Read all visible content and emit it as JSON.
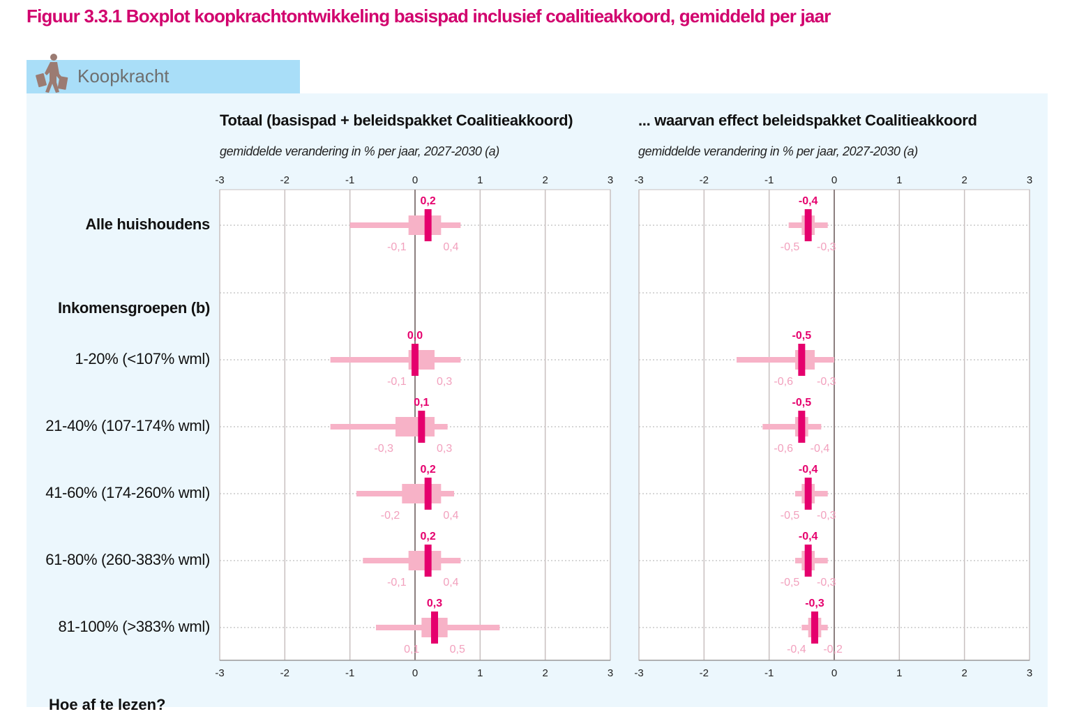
{
  "figure": {
    "title": "Figuur 3.3.1  Boxplot koopkrachtontwikkeling basispad inclusief coalitieakkoord, gemiddeld per jaar",
    "tab_label": "Koopkracht",
    "tab_icon": "person-with-shopping-bags-icon",
    "footer_heading": "Hoe af te lezen?"
  },
  "colors": {
    "title": "#d1006d",
    "median": "#e5006d",
    "box": "#f7b2c7",
    "label_light": "#f2a0bd",
    "tab_bg": "#a9def8",
    "panel_bg": "#ecf7fd",
    "grid": "#c8c0c0",
    "zero_line": "#8c7f7f"
  },
  "row_labels": [
    {
      "key": "alle",
      "label": "Alle huishoudens",
      "bold": true
    },
    {
      "key": "section",
      "label": "Inkomensgroepen (b)",
      "bold": true
    },
    {
      "key": "q1",
      "label": "1-20% (<107% wml)",
      "bold": false
    },
    {
      "key": "q2",
      "label": "21-40% (107-174% wml)",
      "bold": false
    },
    {
      "key": "q3",
      "label": "41-60% (174-260% wml)",
      "bold": false
    },
    {
      "key": "q4",
      "label": "61-80% (260-383% wml)",
      "bold": false
    },
    {
      "key": "q5",
      "label": "81-100% (>383% wml)",
      "bold": false
    }
  ],
  "chart_data": [
    {
      "type": "boxplot",
      "title": "Totaal (basispad + beleidspakket Coalitieakkoord)",
      "subtitle": "gemiddelde verandering in % per jaar, 2027-2030 (a)",
      "xlim": [
        -3,
        3
      ],
      "xticks": [
        -3,
        -2,
        -1,
        0,
        1,
        2,
        3
      ],
      "xtick_labels": [
        "-3",
        "-2",
        "-1",
        "0",
        "1",
        "2",
        "3"
      ],
      "grid": true,
      "rows": [
        {
          "key": "alle",
          "whisker_low": -1.0,
          "q1": -0.1,
          "median": 0.2,
          "q3": 0.4,
          "whisker_high": 0.7,
          "q1_label": "-0,1",
          "median_label": "0,2",
          "q3_label": "0,4"
        },
        {
          "key": "section"
        },
        {
          "key": "q1",
          "whisker_low": -1.3,
          "q1": -0.1,
          "median": 0.0,
          "q3": 0.3,
          "whisker_high": 0.7,
          "q1_label": "-0,1",
          "median_label": "0,0",
          "q3_label": "0,3"
        },
        {
          "key": "q2",
          "whisker_low": -1.3,
          "q1": -0.3,
          "median": 0.1,
          "q3": 0.3,
          "whisker_high": 0.5,
          "q1_label": "-0,3",
          "median_label": "0,1",
          "q3_label": "0,3"
        },
        {
          "key": "q3",
          "whisker_low": -0.9,
          "q1": -0.2,
          "median": 0.2,
          "q3": 0.4,
          "whisker_high": 0.6,
          "q1_label": "-0,2",
          "median_label": "0,2",
          "q3_label": "0,4"
        },
        {
          "key": "q4",
          "whisker_low": -0.8,
          "q1": -0.1,
          "median": 0.2,
          "q3": 0.4,
          "whisker_high": 0.7,
          "q1_label": "-0,1",
          "median_label": "0,2",
          "q3_label": "0,4"
        },
        {
          "key": "q5",
          "whisker_low": -0.6,
          "q1": 0.1,
          "median": 0.3,
          "q3": 0.5,
          "whisker_high": 1.3,
          "q1_label": "0,1",
          "median_label": "0,3",
          "q3_label": "0,5"
        }
      ]
    },
    {
      "type": "boxplot",
      "title": "... waarvan effect beleidspakket Coalitieakkoord",
      "subtitle": "gemiddelde verandering in % per jaar, 2027-2030 (a)",
      "xlim": [
        -3,
        3
      ],
      "xticks": [
        -3,
        -2,
        -1,
        0,
        1,
        2,
        3
      ],
      "xtick_labels": [
        "-3",
        "-2",
        "-1",
        "0",
        "1",
        "2",
        "3"
      ],
      "grid": true,
      "rows": [
        {
          "key": "alle",
          "whisker_low": -0.7,
          "q1": -0.5,
          "median": -0.4,
          "q3": -0.3,
          "whisker_high": -0.1,
          "q1_label": "-0,5",
          "median_label": "-0,4",
          "q3_label": "-0,3"
        },
        {
          "key": "section"
        },
        {
          "key": "q1",
          "whisker_low": -1.5,
          "q1": -0.6,
          "median": -0.5,
          "q3": -0.3,
          "whisker_high": 0.0,
          "q1_label": "-0,6",
          "median_label": "-0,5",
          "q3_label": "-0,3"
        },
        {
          "key": "q2",
          "whisker_low": -1.1,
          "q1": -0.6,
          "median": -0.5,
          "q3": -0.4,
          "whisker_high": -0.2,
          "q1_label": "-0,6",
          "median_label": "-0,5",
          "q3_label": "-0,4"
        },
        {
          "key": "q3",
          "whisker_low": -0.6,
          "q1": -0.5,
          "median": -0.4,
          "q3": -0.3,
          "whisker_high": -0.1,
          "q1_label": "-0,5",
          "median_label": "-0,4",
          "q3_label": "-0,3"
        },
        {
          "key": "q4",
          "whisker_low": -0.6,
          "q1": -0.5,
          "median": -0.4,
          "q3": -0.3,
          "whisker_high": -0.1,
          "q1_label": "-0,5",
          "median_label": "-0,4",
          "q3_label": "-0,3"
        },
        {
          "key": "q5",
          "whisker_low": -0.5,
          "q1": -0.4,
          "median": -0.3,
          "q3": -0.2,
          "whisker_high": -0.1,
          "q1_label": "-0,4",
          "median_label": "-0,3",
          "q3_label": "-0,2"
        }
      ]
    }
  ]
}
